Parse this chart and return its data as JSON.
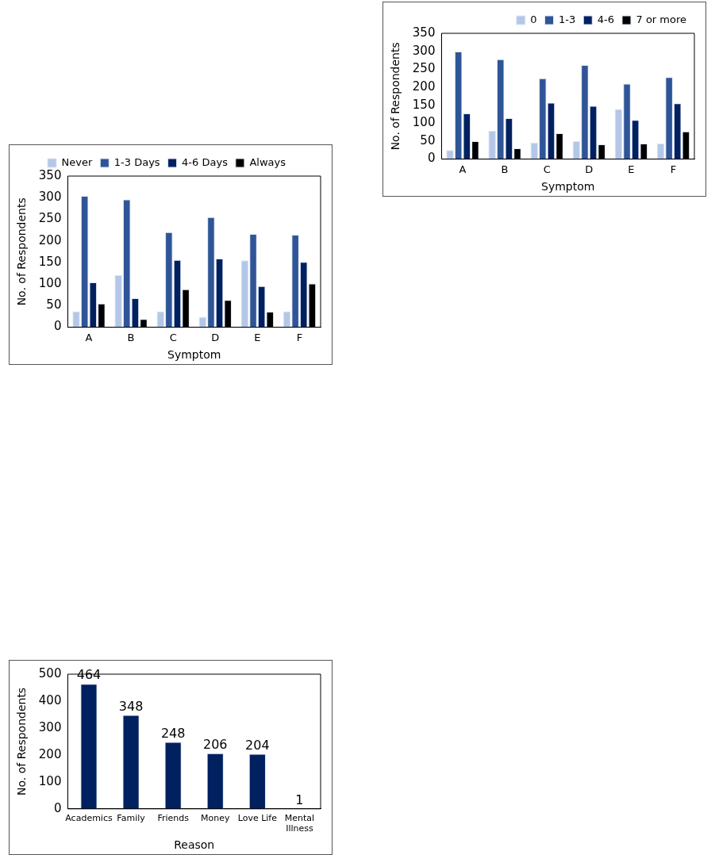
{
  "chart_data": [
    {
      "type": "bar",
      "xlabel": "Symptom",
      "ylabel": "No. of Respondents",
      "categories": [
        "A",
        "B",
        "C",
        "D",
        "E",
        "F"
      ],
      "ylim": [
        0,
        350
      ],
      "yticks": [
        0,
        50,
        100,
        150,
        200,
        250,
        300,
        350
      ],
      "grid": false,
      "legend": "top right",
      "series": [
        {
          "name": "0",
          "color": "#b4c7e7",
          "values": [
            25,
            79,
            46,
            50,
            139,
            43
          ]
        },
        {
          "name": "1-3",
          "color": "#2f5597",
          "values": [
            299,
            278,
            225,
            262,
            210,
            228
          ]
        },
        {
          "name": "4-6",
          "color": "#002060",
          "values": [
            127,
            114,
            157,
            148,
            109,
            155
          ]
        },
        {
          "name": "7 or more",
          "color": "#000000",
          "values": [
            50,
            30,
            72,
            41,
            43,
            77
          ]
        }
      ]
    },
    {
      "type": "bar",
      "xlabel": "Symptom",
      "ylabel": "No. of Respondents",
      "categories": [
        "A",
        "B",
        "C",
        "D",
        "E",
        "F"
      ],
      "ylim": [
        0,
        350
      ],
      "yticks": [
        0,
        50,
        100,
        150,
        200,
        250,
        300,
        350
      ],
      "grid": false,
      "legend": "top",
      "series": [
        {
          "name": "Never",
          "color": "#b4c7e7",
          "values": [
            37,
            121,
            37,
            24,
            155,
            37
          ]
        },
        {
          "name": "1-3 Days",
          "color": "#2f5597",
          "values": [
            304,
            296,
            220,
            255,
            216,
            214
          ]
        },
        {
          "name": "4-6 Days",
          "color": "#002060",
          "values": [
            104,
            67,
            156,
            159,
            95,
            151
          ]
        },
        {
          "name": "Always",
          "color": "#000000",
          "values": [
            55,
            19,
            88,
            63,
            36,
            101
          ]
        }
      ]
    },
    {
      "type": "bar",
      "xlabel": "Reason",
      "ylabel": "No. of Respondents",
      "categories": [
        "Academics",
        "Family",
        "Friends",
        "Money",
        "Love Life",
        "Mental Illness"
      ],
      "ylim": [
        0,
        500
      ],
      "yticks": [
        0,
        100,
        200,
        300,
        400,
        500
      ],
      "grid": false,
      "legend": false,
      "data_labels": true,
      "series": [
        {
          "color": "#002060",
          "values": [
            464,
            348,
            248,
            206,
            204,
            1
          ]
        }
      ]
    }
  ]
}
